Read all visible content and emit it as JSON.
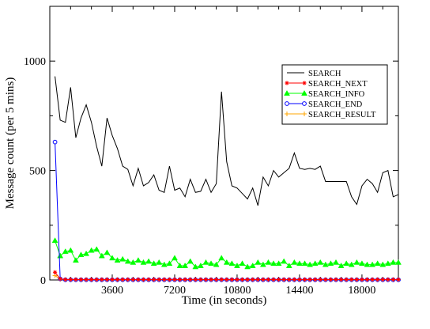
{
  "chart_data": {
    "type": "line",
    "title": "",
    "xlabel": "Time (in seconds)",
    "ylabel": "Message count (per 5 mins)",
    "xlim": [
      0,
      20100
    ],
    "ylim": [
      0,
      1250
    ],
    "xticks": [
      3600,
      7200,
      10800,
      14400,
      18000
    ],
    "xtick_labels": [
      "3600",
      "7200",
      "10800",
      "14400",
      "18000"
    ],
    "yticks": [
      0,
      500,
      1000
    ],
    "ytick_labels": [
      "0",
      "500",
      "1000"
    ],
    "grid": false,
    "legend_position": "top-right",
    "x": [
      300,
      600,
      900,
      1200,
      1500,
      1800,
      2100,
      2400,
      2700,
      3000,
      3300,
      3600,
      3900,
      4200,
      4500,
      4800,
      5100,
      5400,
      5700,
      6000,
      6300,
      6600,
      6900,
      7200,
      7500,
      7800,
      8100,
      8400,
      8700,
      9000,
      9300,
      9600,
      9900,
      10200,
      10500,
      10800,
      11100,
      11400,
      11700,
      12000,
      12300,
      12600,
      12900,
      13200,
      13500,
      13800,
      14100,
      14400,
      14700,
      15000,
      15300,
      15600,
      15900,
      16200,
      16500,
      16800,
      17100,
      17400,
      17700,
      18000,
      18300,
      18600,
      18900,
      19200,
      19500,
      19800,
      20100
    ],
    "series": [
      {
        "name": "SEARCH",
        "color": "#000000",
        "marker": "none",
        "values": [
          930,
          730,
          720,
          880,
          650,
          740,
          800,
          720,
          610,
          520,
          740,
          660,
          600,
          520,
          505,
          430,
          510,
          430,
          445,
          480,
          410,
          400,
          520,
          410,
          420,
          380,
          460,
          400,
          405,
          460,
          400,
          440,
          860,
          540,
          430,
          420,
          395,
          370,
          420,
          340,
          470,
          430,
          500,
          470,
          490,
          510,
          580,
          510,
          505,
          510,
          505,
          520,
          450,
          450,
          450,
          450,
          450,
          380,
          345,
          430,
          460,
          440,
          400,
          490,
          500,
          380,
          390
        ]
      },
      {
        "name": "SEARCH_NEXT",
        "color": "#ff0000",
        "marker": "star",
        "values": [
          35,
          5,
          2,
          2,
          2,
          2,
          2,
          2,
          2,
          2,
          2,
          2,
          2,
          2,
          2,
          2,
          2,
          2,
          2,
          2,
          2,
          2,
          2,
          2,
          2,
          2,
          2,
          2,
          2,
          2,
          2,
          2,
          2,
          2,
          2,
          2,
          2,
          2,
          2,
          2,
          2,
          2,
          2,
          2,
          2,
          2,
          2,
          2,
          2,
          2,
          2,
          2,
          2,
          2,
          2,
          2,
          2,
          2,
          2,
          2,
          2,
          2,
          2,
          2,
          2,
          2,
          2
        ]
      },
      {
        "name": "SEARCH_INFO",
        "color": "#00ff00",
        "marker": "triangle",
        "values": [
          180,
          110,
          130,
          135,
          90,
          115,
          120,
          135,
          140,
          110,
          125,
          100,
          90,
          95,
          85,
          80,
          90,
          80,
          85,
          75,
          80,
          70,
          75,
          100,
          65,
          65,
          85,
          60,
          65,
          80,
          75,
          70,
          100,
          80,
          75,
          65,
          75,
          60,
          65,
          80,
          70,
          80,
          75,
          75,
          85,
          65,
          80,
          75,
          75,
          70,
          75,
          80,
          70,
          75,
          80,
          65,
          75,
          70,
          80,
          75,
          70,
          70,
          75,
          70,
          75,
          80,
          80
        ]
      },
      {
        "name": "SEARCH_END",
        "color": "#0000ff",
        "marker": "circle",
        "values": [
          630,
          5,
          1,
          1,
          1,
          1,
          1,
          1,
          1,
          1,
          1,
          1,
          1,
          1,
          1,
          1,
          1,
          1,
          1,
          1,
          1,
          1,
          1,
          1,
          1,
          1,
          1,
          1,
          1,
          1,
          1,
          1,
          1,
          1,
          1,
          1,
          1,
          1,
          1,
          1,
          1,
          1,
          1,
          1,
          1,
          1,
          1,
          1,
          1,
          1,
          1,
          1,
          1,
          1,
          1,
          1,
          1,
          1,
          1,
          1,
          1,
          1,
          1,
          1,
          1,
          1,
          1
        ]
      },
      {
        "name": "SEARCH_RESULT",
        "color": "#ffa500",
        "marker": "plus",
        "values": [
          20,
          3,
          1,
          1,
          1,
          1,
          1,
          1,
          1,
          1,
          1,
          1,
          1,
          1,
          1,
          1,
          1,
          1,
          1,
          1,
          1,
          1,
          1,
          1,
          1,
          1,
          1,
          1,
          1,
          1,
          1,
          1,
          1,
          1,
          1,
          1,
          1,
          1,
          1,
          1,
          1,
          1,
          1,
          1,
          1,
          1,
          1,
          1,
          1,
          1,
          1,
          1,
          1,
          1,
          1,
          1,
          1,
          1,
          1,
          1,
          1,
          1,
          1,
          1,
          1,
          1,
          1
        ]
      }
    ]
  }
}
